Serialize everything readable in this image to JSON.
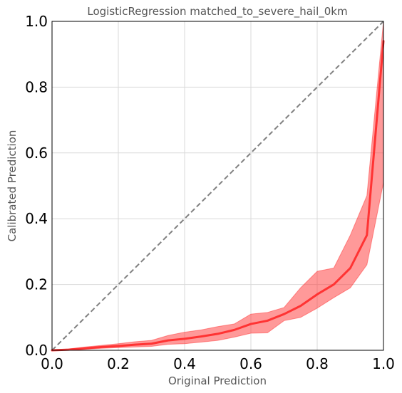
{
  "chart_data": {
    "type": "line",
    "title": "LogisticRegression matched_to_severe_hail_0km",
    "xlabel": "Original Prediction",
    "ylabel": "Calibrated Prediction",
    "xlim": [
      0,
      1
    ],
    "ylim": [
      0,
      1
    ],
    "x_ticks": [
      "0.0",
      "0.2",
      "0.4",
      "0.6",
      "0.8",
      "1.0"
    ],
    "y_ticks": [
      "0.0",
      "0.2",
      "0.4",
      "0.6",
      "0.8",
      "1.0"
    ],
    "grid": true,
    "series": [
      {
        "kind": "reference",
        "style": "dashed",
        "color": "#808080",
        "x": [
          0,
          1
        ],
        "y": [
          0,
          1
        ]
      },
      {
        "kind": "calibration",
        "color": "#ff3333",
        "x": [
          0.0,
          0.05,
          0.1,
          0.15,
          0.2,
          0.25,
          0.3,
          0.35,
          0.4,
          0.45,
          0.5,
          0.55,
          0.6,
          0.65,
          0.7,
          0.75,
          0.8,
          0.85,
          0.9,
          0.95,
          1.0
        ],
        "y": [
          0.0,
          0.002,
          0.006,
          0.01,
          0.013,
          0.017,
          0.02,
          0.03,
          0.035,
          0.042,
          0.05,
          0.062,
          0.08,
          0.09,
          0.11,
          0.135,
          0.17,
          0.2,
          0.25,
          0.35,
          0.94
        ]
      },
      {
        "kind": "confidence-band",
        "color": "#ff3333",
        "x": [
          0.0,
          0.05,
          0.1,
          0.15,
          0.2,
          0.25,
          0.3,
          0.35,
          0.4,
          0.45,
          0.5,
          0.55,
          0.6,
          0.65,
          0.7,
          0.75,
          0.8,
          0.85,
          0.9,
          0.95,
          1.0
        ],
        "lower": [
          0.0,
          0.0,
          0.003,
          0.006,
          0.008,
          0.01,
          0.012,
          0.018,
          0.02,
          0.025,
          0.03,
          0.04,
          0.052,
          0.053,
          0.09,
          0.1,
          0.128,
          0.16,
          0.19,
          0.26,
          0.51
        ],
        "upper": [
          0.0,
          0.004,
          0.01,
          0.015,
          0.02,
          0.026,
          0.03,
          0.045,
          0.055,
          0.062,
          0.072,
          0.08,
          0.11,
          0.115,
          0.13,
          0.19,
          0.24,
          0.25,
          0.35,
          0.47,
          1.0
        ]
      }
    ]
  }
}
